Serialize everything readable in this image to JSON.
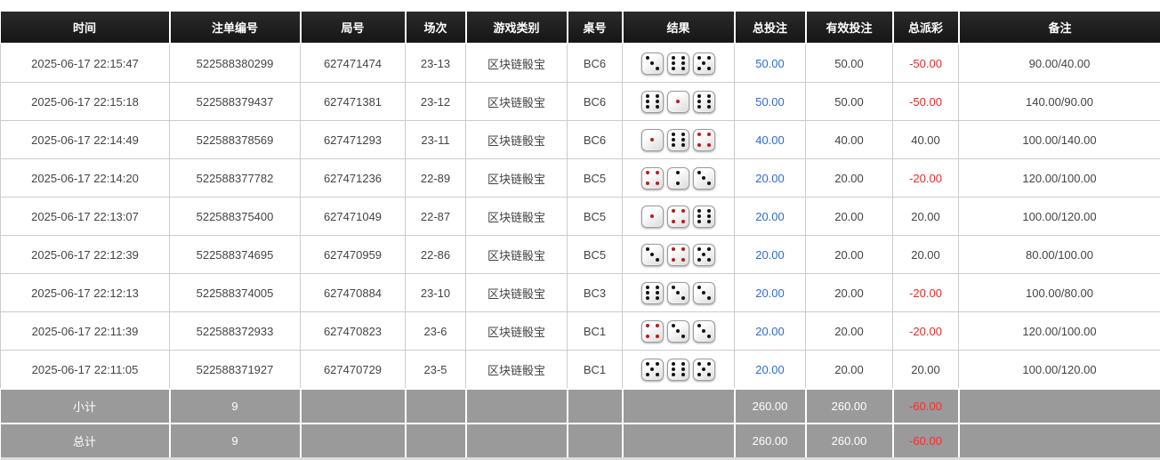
{
  "table": {
    "columns": [
      {
        "key": "time",
        "label": "时间"
      },
      {
        "key": "bet_id",
        "label": "注单编号"
      },
      {
        "key": "round_id",
        "label": "局号"
      },
      {
        "key": "session",
        "label": "场次"
      },
      {
        "key": "game_type",
        "label": "游戏类别"
      },
      {
        "key": "table_no",
        "label": "桌号"
      },
      {
        "key": "result",
        "label": "结果"
      },
      {
        "key": "total_bet",
        "label": "总投注"
      },
      {
        "key": "valid_bet",
        "label": "有效投注"
      },
      {
        "key": "payout",
        "label": "总派彩"
      },
      {
        "key": "remark",
        "label": "备注"
      }
    ],
    "result_icon": "dice-icon",
    "rows": [
      {
        "time": "2025-06-17 22:15:47",
        "bet_id": "522588380299",
        "round_id": "627471474",
        "session": "23-13",
        "game_type": "区块链骰宝",
        "table_no": "BC6",
        "dice": [
          3,
          6,
          5
        ],
        "total_bet": "50.00",
        "valid_bet": "50.00",
        "payout": "-50.00",
        "remark": "90.00/40.00"
      },
      {
        "time": "2025-06-17 22:15:18",
        "bet_id": "522588379437",
        "round_id": "627471381",
        "session": "23-12",
        "game_type": "区块链骰宝",
        "table_no": "BC6",
        "dice": [
          6,
          1,
          6
        ],
        "total_bet": "50.00",
        "valid_bet": "50.00",
        "payout": "-50.00",
        "remark": "140.00/90.00"
      },
      {
        "time": "2025-06-17 22:14:49",
        "bet_id": "522588378569",
        "round_id": "627471293",
        "session": "23-11",
        "game_type": "区块链骰宝",
        "table_no": "BC6",
        "dice": [
          1,
          6,
          4
        ],
        "total_bet": "40.00",
        "valid_bet": "40.00",
        "payout": "40.00",
        "remark": "100.00/140.00"
      },
      {
        "time": "2025-06-17 22:14:20",
        "bet_id": "522588377782",
        "round_id": "627471236",
        "session": "22-89",
        "game_type": "区块链骰宝",
        "table_no": "BC5",
        "dice": [
          4,
          2,
          3
        ],
        "total_bet": "20.00",
        "valid_bet": "20.00",
        "payout": "-20.00",
        "remark": "120.00/100.00"
      },
      {
        "time": "2025-06-17 22:13:07",
        "bet_id": "522588375400",
        "round_id": "627471049",
        "session": "22-87",
        "game_type": "区块链骰宝",
        "table_no": "BC5",
        "dice": [
          1,
          4,
          6
        ],
        "total_bet": "20.00",
        "valid_bet": "20.00",
        "payout": "20.00",
        "remark": "100.00/120.00"
      },
      {
        "time": "2025-06-17 22:12:39",
        "bet_id": "522588374695",
        "round_id": "627470959",
        "session": "22-86",
        "game_type": "区块链骰宝",
        "table_no": "BC5",
        "dice": [
          3,
          4,
          5
        ],
        "total_bet": "20.00",
        "valid_bet": "20.00",
        "payout": "20.00",
        "remark": "80.00/100.00"
      },
      {
        "time": "2025-06-17 22:12:13",
        "bet_id": "522588374005",
        "round_id": "627470884",
        "session": "23-10",
        "game_type": "区块链骰宝",
        "table_no": "BC3",
        "dice": [
          6,
          3,
          3
        ],
        "total_bet": "20.00",
        "valid_bet": "20.00",
        "payout": "-20.00",
        "remark": "100.00/80.00"
      },
      {
        "time": "2025-06-17 22:11:39",
        "bet_id": "522588372933",
        "round_id": "627470823",
        "session": "23-6",
        "game_type": "区块链骰宝",
        "table_no": "BC1",
        "dice": [
          4,
          3,
          3
        ],
        "total_bet": "20.00",
        "valid_bet": "20.00",
        "payout": "-20.00",
        "remark": "120.00/100.00"
      },
      {
        "time": "2025-06-17 22:11:05",
        "bet_id": "522588371927",
        "round_id": "627470729",
        "session": "23-5",
        "game_type": "区块链骰宝",
        "table_no": "BC1",
        "dice": [
          5,
          6,
          5
        ],
        "total_bet": "20.00",
        "valid_bet": "20.00",
        "payout": "20.00",
        "remark": "100.00/120.00"
      }
    ],
    "footer": {
      "subtotal": {
        "label": "小计",
        "count": "9",
        "total_bet": "260.00",
        "valid_bet": "260.00",
        "payout": "-60.00"
      },
      "total": {
        "label": "总计",
        "count": "9",
        "total_bet": "260.00",
        "valid_bet": "260.00",
        "payout": "-60.00"
      }
    }
  },
  "colors": {
    "header_bg": "#1c1c1c",
    "footer_bg": "#9a9a9a",
    "link_blue": "#2d6cd2",
    "negative_red": "#e82c2c",
    "body_text": "#444444",
    "grid_line": "#cccccc",
    "dice_pip_black": "#141414",
    "dice_pip_red": "#b51d1d"
  }
}
